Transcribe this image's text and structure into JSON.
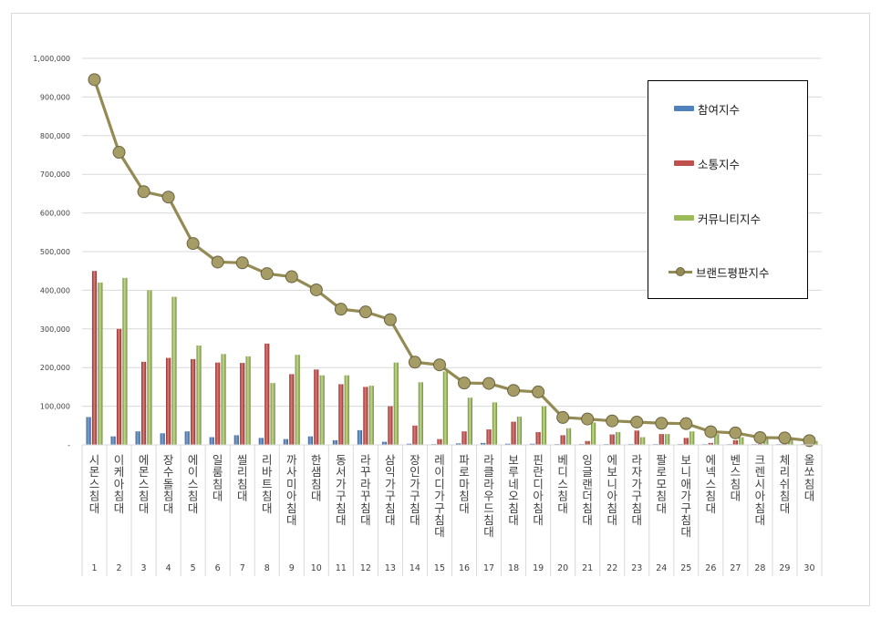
{
  "chart_data": {
    "type": "bar",
    "categories": [
      "시몬스침대",
      "이케아침대",
      "에몬스침대",
      "장수돌침대",
      "에이스침대",
      "일룸침대",
      "씰리침대",
      "리바트침대",
      "까사미아침대",
      "한샘침대",
      "동서가구침대",
      "라꾸라꾸침대",
      "삼익가구침대",
      "장인가구침대",
      "레이디가구침대",
      "파로마침대",
      "라클라우드침대",
      "보루네오침대",
      "핀란디아침대",
      "베디스침대",
      "잉글랜더침대",
      "에보니아침대",
      "라자가구침대",
      "팔로모침대",
      "보니애가구침대",
      "에넥스침대",
      "벤스침대",
      "크렌시아침대",
      "체리쉬침대",
      "올쏘침대"
    ],
    "ranks": [
      "1",
      "2",
      "3",
      "4",
      "5",
      "6",
      "7",
      "8",
      "9",
      "10",
      "11",
      "12",
      "13",
      "14",
      "15",
      "16",
      "17",
      "18",
      "19",
      "20",
      "21",
      "22",
      "23",
      "24",
      "25",
      "26",
      "27",
      "28",
      "29",
      "30"
    ],
    "series": [
      {
        "name": "참여지수",
        "kind": "bar",
        "color": "#4f81bd",
        "values": [
          72000,
          22000,
          35000,
          30000,
          35000,
          20000,
          25000,
          18000,
          15000,
          22000,
          12000,
          38000,
          8000,
          3000,
          2000,
          4000,
          5000,
          3000,
          3000,
          2000,
          2000,
          2000,
          2000,
          2000,
          2000,
          1000,
          1000,
          1000,
          1000,
          1000
        ]
      },
      {
        "name": "소통지수",
        "kind": "bar",
        "color": "#c0504d",
        "values": [
          450000,
          300000,
          215000,
          225000,
          222000,
          213000,
          212000,
          262000,
          183000,
          195000,
          157000,
          150000,
          100000,
          50000,
          15000,
          35000,
          40000,
          60000,
          33000,
          25000,
          10000,
          27000,
          37000,
          28000,
          18000,
          5000,
          12000,
          2000,
          2000,
          2000
        ]
      },
      {
        "name": "커뮤니티지수",
        "kind": "bar",
        "color": "#9bbb59",
        "values": [
          420000,
          432000,
          400000,
          383000,
          257000,
          235000,
          229000,
          160000,
          233000,
          180000,
          180000,
          153000,
          213000,
          162000,
          190000,
          122000,
          110000,
          73000,
          100000,
          43000,
          58000,
          33000,
          20000,
          28000,
          35000,
          28000,
          20000,
          16000,
          15000,
          10000
        ]
      },
      {
        "name": "브랜드평판지수",
        "kind": "line",
        "color": "#948a54",
        "values": [
          945000,
          757000,
          655000,
          641000,
          521000,
          473000,
          471000,
          443000,
          435000,
          401000,
          351000,
          344000,
          324000,
          214000,
          207000,
          160000,
          159000,
          141000,
          137000,
          71000,
          67000,
          62000,
          59000,
          56000,
          55000,
          34000,
          31000,
          19000,
          18000,
          11000
        ]
      }
    ],
    "ylim": [
      0,
      1000000
    ],
    "yticks": [
      0,
      100000,
      200000,
      300000,
      400000,
      500000,
      600000,
      700000,
      800000,
      900000,
      1000000
    ],
    "ytick_labels": [
      "-",
      "100,000",
      "200,000",
      "300,000",
      "400,000",
      "500,000",
      "600,000",
      "700,000",
      "800,000",
      "900,000",
      "1,000,000"
    ],
    "title": "",
    "xlabel": "",
    "ylabel": "",
    "grid": true,
    "legend_position": "right"
  }
}
